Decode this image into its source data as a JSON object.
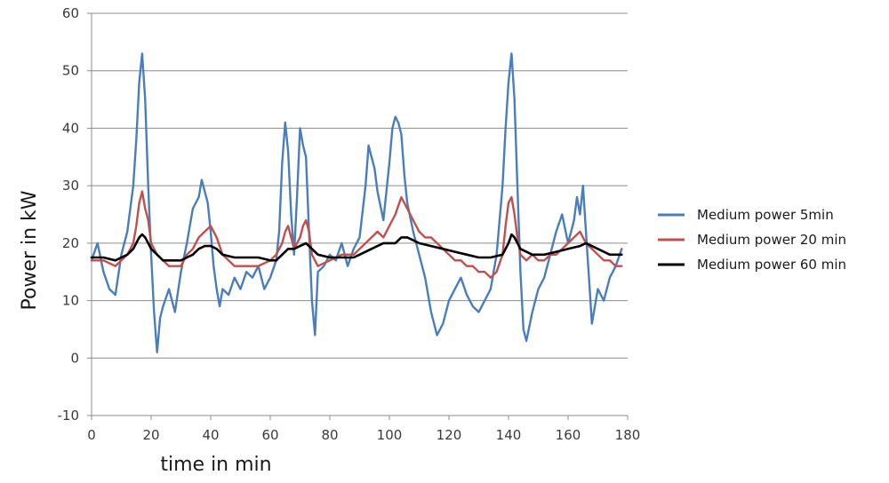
{
  "chart_data": {
    "type": "line",
    "title": "",
    "xlabel": "time in min",
    "ylabel": "Power in kW",
    "xlim": [
      0,
      180
    ],
    "ylim": [
      -10,
      60
    ],
    "x_ticks": [
      0,
      20,
      40,
      60,
      80,
      100,
      120,
      140,
      160,
      180
    ],
    "y_ticks": [
      -10,
      0,
      10,
      20,
      30,
      40,
      50,
      60
    ],
    "grid": "horizontal",
    "legend_position": "right",
    "series": [
      {
        "name": "Medium power 5min",
        "color": "#4a7ebb",
        "x": [
          0,
          2,
          4,
          6,
          8,
          10,
          12,
          14,
          15,
          16,
          17,
          18,
          19,
          20,
          21,
          22,
          23,
          24,
          26,
          28,
          30,
          32,
          34,
          36,
          37,
          38,
          39,
          40,
          41,
          42,
          43,
          44,
          46,
          48,
          50,
          52,
          54,
          56,
          58,
          60,
          62,
          63,
          64,
          65,
          66,
          67,
          68,
          69,
          70,
          71,
          72,
          73,
          74,
          75,
          76,
          78,
          80,
          82,
          84,
          86,
          88,
          90,
          92,
          93,
          94,
          95,
          96,
          98,
          100,
          101,
          102,
          103,
          104,
          105,
          106,
          108,
          110,
          112,
          114,
          116,
          118,
          120,
          122,
          124,
          126,
          128,
          130,
          132,
          134,
          136,
          138,
          139,
          140,
          141,
          142,
          143,
          144,
          145,
          146,
          148,
          150,
          152,
          154,
          156,
          158,
          160,
          162,
          163,
          164,
          165,
          166,
          167,
          168,
          170,
          172,
          174,
          176,
          178
        ],
        "y": [
          17,
          20,
          15,
          12,
          11,
          18,
          22,
          30,
          38,
          48,
          53,
          45,
          30,
          18,
          8,
          1,
          7,
          9,
          12,
          8,
          15,
          20,
          26,
          28,
          31,
          29,
          27,
          22,
          16,
          12,
          9,
          12,
          11,
          14,
          12,
          15,
          14,
          16,
          12,
          14,
          17,
          22,
          34,
          41,
          36,
          25,
          18,
          28,
          40,
          37,
          35,
          22,
          10,
          4,
          15,
          16,
          18,
          17,
          20,
          16,
          19,
          21,
          30,
          37,
          35,
          33,
          29,
          24,
          34,
          40,
          42,
          41,
          39,
          32,
          27,
          22,
          18,
          14,
          8,
          4,
          6,
          10,
          12,
          14,
          11,
          9,
          8,
          10,
          12,
          18,
          30,
          40,
          48,
          53,
          45,
          30,
          15,
          5,
          3,
          8,
          12,
          14,
          18,
          22,
          25,
          20,
          24,
          28,
          25,
          30,
          22,
          14,
          6,
          12,
          10,
          14,
          16,
          19
        ]
      },
      {
        "name": "Medium power 20 min",
        "color": "#c0504d",
        "x": [
          0,
          4,
          8,
          10,
          12,
          14,
          15,
          16,
          17,
          18,
          19,
          20,
          22,
          24,
          26,
          28,
          30,
          32,
          34,
          36,
          38,
          40,
          42,
          44,
          48,
          52,
          56,
          60,
          62,
          64,
          65,
          66,
          67,
          68,
          70,
          71,
          72,
          73,
          74,
          76,
          80,
          84,
          88,
          90,
          92,
          94,
          96,
          98,
          100,
          102,
          104,
          106,
          108,
          110,
          112,
          114,
          116,
          118,
          120,
          122,
          124,
          126,
          128,
          130,
          132,
          134,
          136,
          138,
          139,
          140,
          141,
          142,
          143,
          144,
          146,
          148,
          150,
          152,
          154,
          156,
          158,
          160,
          162,
          164,
          166,
          168,
          170,
          172,
          174,
          176,
          178
        ],
        "y": [
          17,
          17,
          16,
          17,
          18,
          20,
          23,
          27,
          29,
          26,
          24,
          20,
          18,
          17,
          16,
          16,
          16,
          18,
          19,
          21,
          22,
          23,
          21,
          18,
          16,
          16,
          16,
          17,
          18,
          20,
          22,
          23,
          21,
          19,
          21,
          23,
          24,
          22,
          18,
          16,
          17,
          18,
          18,
          19,
          20,
          21,
          22,
          21,
          23,
          25,
          28,
          26,
          24,
          22,
          21,
          21,
          20,
          19,
          18,
          17,
          17,
          16,
          16,
          15,
          15,
          14,
          15,
          18,
          23,
          27,
          28,
          25,
          21,
          18,
          17,
          18,
          17,
          17,
          18,
          18,
          19,
          20,
          21,
          22,
          20,
          19,
          18,
          17,
          17,
          16,
          16
        ]
      },
      {
        "name": "Medium power 60 min",
        "color": "#000000",
        "x": [
          0,
          4,
          8,
          10,
          12,
          14,
          16,
          17,
          18,
          20,
          22,
          24,
          26,
          28,
          30,
          32,
          34,
          36,
          38,
          40,
          42,
          44,
          48,
          52,
          56,
          60,
          62,
          64,
          66,
          68,
          70,
          72,
          74,
          76,
          80,
          84,
          88,
          90,
          92,
          94,
          96,
          98,
          100,
          102,
          104,
          106,
          108,
          110,
          114,
          118,
          122,
          126,
          130,
          134,
          138,
          140,
          141,
          142,
          144,
          148,
          152,
          156,
          160,
          164,
          166,
          168,
          170,
          174,
          178
        ],
        "y": [
          17.5,
          17.5,
          17,
          17.5,
          18,
          19,
          21,
          21.5,
          21,
          19,
          18,
          17,
          17,
          17,
          17,
          17.5,
          18,
          19,
          19.5,
          19.5,
          19,
          18,
          17.5,
          17.5,
          17.5,
          17,
          17,
          18,
          19,
          19,
          19.5,
          20,
          19,
          18,
          17.5,
          17.5,
          17.5,
          18,
          18.5,
          19,
          19.5,
          20,
          20,
          20,
          21,
          21,
          20.5,
          20,
          19.5,
          19,
          18.5,
          18,
          17.5,
          17.5,
          18,
          20,
          21.5,
          21,
          19,
          18,
          18,
          18.5,
          19,
          19.5,
          20,
          19.5,
          19,
          18,
          18
        ]
      }
    ]
  }
}
